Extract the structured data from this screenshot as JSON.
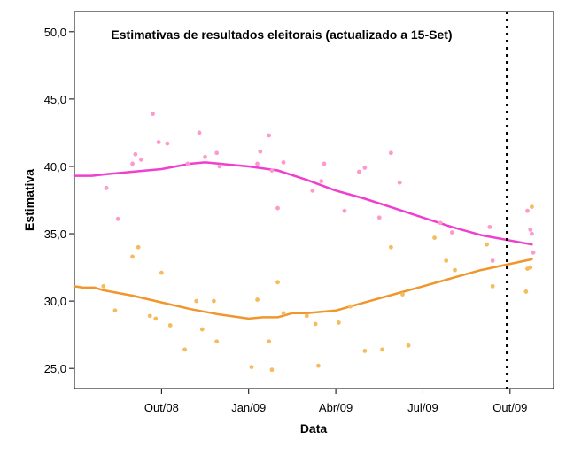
{
  "chart_data": {
    "type": "scatter",
    "title": "Estimativas de resultados eleitorais (actualizado a 15-Set)",
    "xlabel": "Data",
    "ylabel": "Estimativa",
    "x_unit": "months since 2008-07-01",
    "xlim": [
      0,
      16.5
    ],
    "ylim": [
      23.5,
      51.5
    ],
    "yticks": [
      25.0,
      30.0,
      35.0,
      40.0,
      45.0,
      50.0
    ],
    "ytick_labels": [
      "25,0",
      "30,0",
      "35,0",
      "40,0",
      "45,0",
      "50,0"
    ],
    "xticks": [
      {
        "x": 3,
        "label": "Out/08"
      },
      {
        "x": 6,
        "label": "Jan/09"
      },
      {
        "x": 9,
        "label": "Abr/09"
      },
      {
        "x": 12,
        "label": "Jul/09"
      },
      {
        "x": 15,
        "label": "Out/09"
      }
    ],
    "reference_line": {
      "x": 14.9,
      "style": "dotted",
      "color": "#000000"
    },
    "series": [
      {
        "name": "pink",
        "color": "#ff99cc",
        "line_color": "#ee3fcf",
        "points": [
          [
            1.1,
            38.4
          ],
          [
            1.5,
            36.1
          ],
          [
            2.0,
            40.2
          ],
          [
            2.1,
            40.9
          ],
          [
            2.3,
            40.5
          ],
          [
            2.7,
            43.9
          ],
          [
            2.9,
            41.8
          ],
          [
            3.2,
            41.7
          ],
          [
            3.9,
            40.2
          ],
          [
            4.3,
            42.5
          ],
          [
            4.5,
            40.7
          ],
          [
            4.9,
            41.0
          ],
          [
            5.0,
            40.0
          ],
          [
            6.3,
            40.2
          ],
          [
            6.4,
            41.1
          ],
          [
            6.7,
            42.3
          ],
          [
            6.8,
            39.7
          ],
          [
            7.0,
            36.9
          ],
          [
            7.2,
            40.3
          ],
          [
            8.2,
            38.2
          ],
          [
            8.5,
            38.9
          ],
          [
            8.6,
            40.2
          ],
          [
            9.3,
            36.7
          ],
          [
            9.8,
            39.6
          ],
          [
            10.0,
            39.9
          ],
          [
            10.5,
            36.2
          ],
          [
            10.9,
            41.0
          ],
          [
            11.2,
            38.8
          ],
          [
            12.6,
            35.8
          ],
          [
            13.0,
            35.1
          ],
          [
            14.3,
            35.5
          ],
          [
            14.4,
            33.0
          ],
          [
            15.6,
            36.7
          ],
          [
            15.7,
            35.3
          ],
          [
            15.75,
            35.0
          ],
          [
            15.8,
            33.6
          ]
        ],
        "trend": [
          [
            0,
            39.3
          ],
          [
            0.6,
            39.3
          ],
          [
            1.0,
            39.4
          ],
          [
            2.0,
            39.6
          ],
          [
            3.0,
            39.8
          ],
          [
            4.0,
            40.2
          ],
          [
            4.5,
            40.3
          ],
          [
            5.0,
            40.2
          ],
          [
            6.0,
            40.0
          ],
          [
            7.0,
            39.7
          ],
          [
            8.0,
            39.0
          ],
          [
            9.0,
            38.2
          ],
          [
            10.0,
            37.6
          ],
          [
            11.0,
            36.9
          ],
          [
            12.0,
            36.2
          ],
          [
            13.0,
            35.5
          ],
          [
            14.0,
            34.9
          ],
          [
            15.75,
            34.2
          ]
        ]
      },
      {
        "name": "orange",
        "color": "#f5bb5c",
        "line_color": "#f0962c",
        "points": [
          [
            1.0,
            31.1
          ],
          [
            1.4,
            29.3
          ],
          [
            2.0,
            33.3
          ],
          [
            2.2,
            34.0
          ],
          [
            2.6,
            28.9
          ],
          [
            2.8,
            28.7
          ],
          [
            3.0,
            32.1
          ],
          [
            3.3,
            28.2
          ],
          [
            3.8,
            26.4
          ],
          [
            4.2,
            30.0
          ],
          [
            4.4,
            27.9
          ],
          [
            4.8,
            30.0
          ],
          [
            4.9,
            27.0
          ],
          [
            6.1,
            25.1
          ],
          [
            6.3,
            30.1
          ],
          [
            6.7,
            27.0
          ],
          [
            6.8,
            24.9
          ],
          [
            7.0,
            31.4
          ],
          [
            7.2,
            29.1
          ],
          [
            8.0,
            28.9
          ],
          [
            8.3,
            28.3
          ],
          [
            8.4,
            25.2
          ],
          [
            9.1,
            28.4
          ],
          [
            9.5,
            29.6
          ],
          [
            10.0,
            26.3
          ],
          [
            10.6,
            26.4
          ],
          [
            10.9,
            34.0
          ],
          [
            11.3,
            30.5
          ],
          [
            11.5,
            26.7
          ],
          [
            12.4,
            34.7
          ],
          [
            12.8,
            33.0
          ],
          [
            13.1,
            32.3
          ],
          [
            14.2,
            34.2
          ],
          [
            14.4,
            31.1
          ],
          [
            15.55,
            30.7
          ],
          [
            15.6,
            32.4
          ],
          [
            15.7,
            32.5
          ],
          [
            15.75,
            37.0
          ]
        ],
        "trend": [
          [
            0,
            31.1
          ],
          [
            0.3,
            31.0
          ],
          [
            0.7,
            31.0
          ],
          [
            1.0,
            30.8
          ],
          [
            2.0,
            30.4
          ],
          [
            3.0,
            29.9
          ],
          [
            4.0,
            29.4
          ],
          [
            5.0,
            29.0
          ],
          [
            6.0,
            28.7
          ],
          [
            6.5,
            28.8
          ],
          [
            7.0,
            28.8
          ],
          [
            7.5,
            29.1
          ],
          [
            8.0,
            29.1
          ],
          [
            9.0,
            29.3
          ],
          [
            10.0,
            29.9
          ],
          [
            11.0,
            30.5
          ],
          [
            12.0,
            31.1
          ],
          [
            13.0,
            31.7
          ],
          [
            14.0,
            32.3
          ],
          [
            15.75,
            33.1
          ]
        ]
      }
    ]
  }
}
